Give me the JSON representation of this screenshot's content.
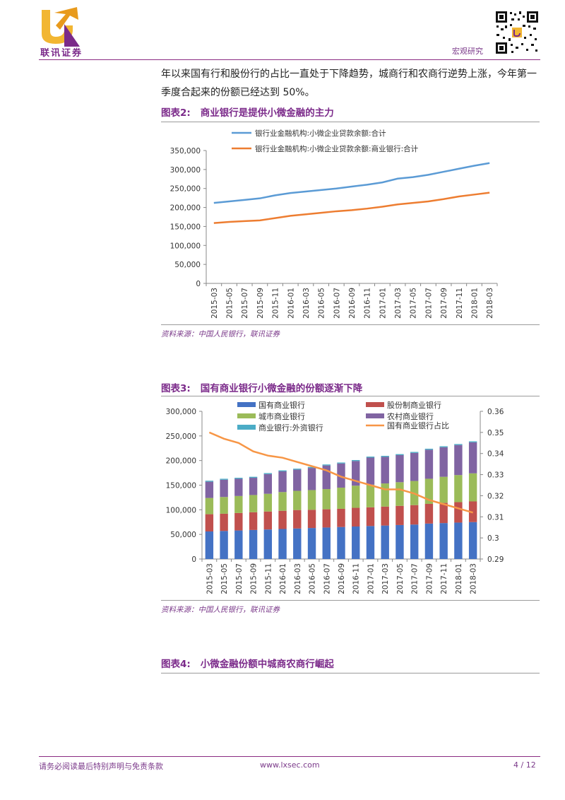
{
  "header": {
    "logo_text": "联讯证券",
    "section": "宏观研究"
  },
  "body_text": {
    "paragraph": "年以来国有行和股份行的占比一直处于下降趋势，城商行和农商行逆势上涨，今年第一季度合起来的份额已经达到 50%。"
  },
  "figure2": {
    "number": "图表2:",
    "title": "商业银行是提供小微金融的主力",
    "source": "资料来源：中国人民银行，联讯证券"
  },
  "figure3": {
    "number": "图表3:",
    "title": "国有商业银行小微金融的份额逐渐下降",
    "source": "资料来源：中国人民银行，联讯证券"
  },
  "figure4": {
    "number": "图表4:",
    "title": "小微金融份额中城商农商行崛起"
  },
  "footer": {
    "disclaimer": "请务必阅读最后特别声明与免责条款",
    "website": "www.lxsec.com",
    "page": "4 / 12"
  },
  "chart_data": [
    {
      "type": "line",
      "x": [
        "2015-03",
        "2015-05",
        "2015-07",
        "2015-09",
        "2015-11",
        "2016-01",
        "2016-03",
        "2016-05",
        "2016-07",
        "2016-09",
        "2016-11",
        "2017-01",
        "2017-03",
        "2017-05",
        "2017-07",
        "2017-09",
        "2017-11",
        "2018-01",
        "2018-03"
      ],
      "series": [
        {
          "name": "银行业金融机构:小微企业贷款余额:合计",
          "color": "#5b9bd5",
          "values": [
            212000,
            216000,
            220000,
            224000,
            232000,
            238000,
            242000,
            246000,
            250000,
            255000,
            260000,
            266000,
            276000,
            280000,
            286000,
            294000,
            302000,
            310000,
            317000
          ]
        },
        {
          "name": "银行业金融机构:小微企业贷款余额:商业银行:合计",
          "color": "#ed7d31",
          "values": [
            159000,
            162000,
            164000,
            166000,
            172000,
            178000,
            182000,
            186000,
            190000,
            193000,
            197000,
            202000,
            208000,
            212000,
            216000,
            222000,
            229000,
            234000,
            239000
          ]
        }
      ],
      "ylim": [
        0,
        350000
      ],
      "yticks": [
        0,
        50000,
        100000,
        150000,
        200000,
        250000,
        300000,
        350000
      ],
      "ytick_labels": [
        "0",
        "50,000",
        "100,000",
        "150,000",
        "200,000",
        "250,000",
        "300,000",
        "350,000"
      ],
      "legend": "top"
    },
    {
      "type": "bar",
      "stacked": true,
      "categories": [
        "2015-03",
        "2015-05",
        "2015-07",
        "2015-09",
        "2015-11",
        "2016-01",
        "2016-03",
        "2016-05",
        "2016-07",
        "2016-09",
        "2016-11",
        "2017-01",
        "2017-03",
        "2017-05",
        "2017-07",
        "2017-09",
        "2017-11",
        "2018-01",
        "2018-03"
      ],
      "series": [
        {
          "name": "国有商业银行",
          "color": "#4472c4",
          "values": [
            56000,
            57000,
            58000,
            59000,
            60000,
            61000,
            62000,
            63000,
            64000,
            65000,
            66000,
            67000,
            68000,
            69000,
            70000,
            72000,
            73000,
            74000,
            75000
          ]
        },
        {
          "name": "股份制商业银行",
          "color": "#c0504d",
          "values": [
            35000,
            35000,
            35500,
            36000,
            36500,
            37000,
            37500,
            37000,
            37000,
            37000,
            38000,
            38000,
            38500,
            39000,
            39500,
            40000,
            41000,
            41500,
            42000
          ]
        },
        {
          "name": "城市商业银行",
          "color": "#9bbb59",
          "values": [
            33000,
            34000,
            34500,
            35000,
            36000,
            38000,
            39000,
            40000,
            41000,
            43000,
            45000,
            46000,
            47000,
            48000,
            49000,
            51000,
            53000,
            55000,
            57000
          ]
        },
        {
          "name": "农村商业银行",
          "color": "#8064a2",
          "values": [
            33000,
            35000,
            35000,
            35000,
            40000,
            42000,
            43000,
            45000,
            48000,
            49000,
            50000,
            55000,
            54000,
            55000,
            57000,
            59000,
            60000,
            61000,
            63000
          ]
        },
        {
          "name": "商业银行:外资银行",
          "color": "#4bacc6",
          "values": [
            2000,
            2000,
            2000,
            2000,
            2000,
            2000,
            2000,
            2000,
            2000,
            2000,
            2000,
            2000,
            2000,
            2000,
            2000,
            2000,
            2000,
            2000,
            2000
          ]
        }
      ],
      "line_series": {
        "name": "国有商业银行占比",
        "color": "#f79646",
        "axis": "right",
        "values": [
          0.35,
          0.347,
          0.345,
          0.341,
          0.339,
          0.338,
          0.336,
          0.334,
          0.332,
          0.329,
          0.327,
          0.325,
          0.323,
          0.323,
          0.321,
          0.318,
          0.316,
          0.314,
          0.312
        ]
      },
      "ylim": [
        0,
        300000
      ],
      "yticks": [
        0,
        50000,
        100000,
        150000,
        200000,
        250000,
        300000
      ],
      "ytick_labels": [
        "0",
        "50,000",
        "100,000",
        "150,000",
        "200,000",
        "250,000",
        "300,000"
      ],
      "y2lim": [
        0.29,
        0.36
      ],
      "y2ticks": [
        0.29,
        0.3,
        0.31,
        0.32,
        0.33,
        0.34,
        0.35,
        0.36
      ],
      "y2tick_labels": [
        "0.29",
        "0.3",
        "0.31",
        "0.32",
        "0.33",
        "0.34",
        "0.35",
        "0.36"
      ],
      "legend": "top"
    }
  ]
}
